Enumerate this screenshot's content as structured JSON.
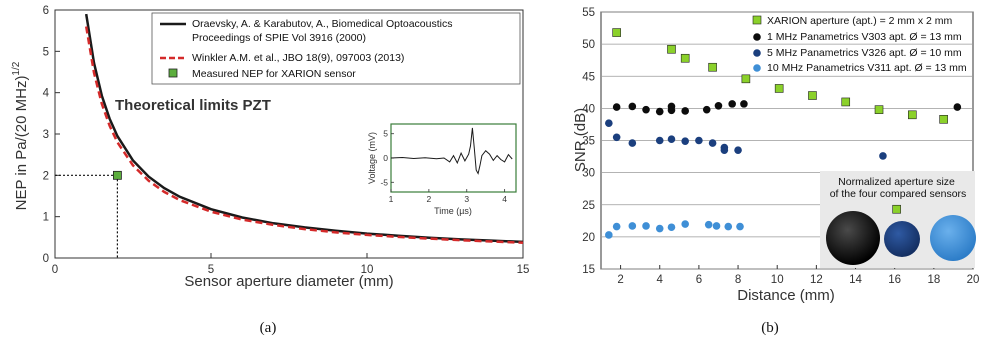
{
  "captions": [
    "(a)",
    "(b)"
  ],
  "chart_data": [
    {
      "type": "line",
      "xlabel": "Sensor aperture diameter (mm)",
      "ylabel": "NEP in Pa/(20 MHz)",
      "ylabel_sup": "1/2",
      "xlim": [
        0,
        15
      ],
      "ylim": [
        0,
        6
      ],
      "xticks": [
        "0",
        "5",
        "10",
        "15"
      ],
      "yticks": [
        "0",
        "1",
        "2",
        "3",
        "4",
        "5",
        "6"
      ],
      "annotation": "Theoretical limits PZT",
      "legend": {
        "position": "top-right",
        "entries": [
          "Oraevsky, A. & Karabutov, A., Biomedical Optoacoustics",
          "Proceedings of SPIE Vol 3916 (2000)",
          "Winkler A.M. et al., JBO 18(9), 097003 (2013)",
          "Measured NEP for XARION sensor"
        ]
      },
      "series": [
        {
          "style": "solid",
          "color": "#1a1a1a",
          "x": [
            1.0,
            1.25,
            1.5,
            1.75,
            2.0,
            2.5,
            3.0,
            3.5,
            4.0,
            5.0,
            6.0,
            7.0,
            8.0,
            9.0,
            10.0,
            11.0,
            12.0,
            13.0,
            14.0,
            15.0
          ],
          "y": [
            5.9,
            4.72,
            3.93,
            3.37,
            2.95,
            2.36,
            1.97,
            1.69,
            1.48,
            1.18,
            0.98,
            0.84,
            0.74,
            0.66,
            0.59,
            0.54,
            0.49,
            0.45,
            0.42,
            0.39
          ]
        },
        {
          "style": "dashed",
          "color": "#d42a2a",
          "x": [
            1.0,
            1.25,
            1.5,
            1.75,
            2.0,
            2.5,
            3.0,
            3.5,
            4.0,
            5.0,
            6.0,
            7.0,
            8.0,
            9.0,
            10.0,
            11.0,
            12.0,
            13.0,
            14.0,
            15.0
          ],
          "y": [
            5.6,
            4.48,
            3.73,
            3.2,
            2.8,
            2.24,
            1.87,
            1.6,
            1.4,
            1.12,
            0.93,
            0.8,
            0.7,
            0.62,
            0.56,
            0.51,
            0.47,
            0.43,
            0.4,
            0.37
          ]
        },
        {
          "style": "marker",
          "color": "#5cae3d",
          "x": [
            2.0
          ],
          "y": [
            2.0
          ]
        }
      ],
      "inset": {
        "xlabel": "Time (µs)",
        "ylabel": "Voltage (mV)",
        "xlim": [
          1,
          4.3
        ],
        "ylim": [
          -7,
          7
        ],
        "xticks": [
          "1",
          "2",
          "3",
          "4"
        ],
        "yticks": [
          "-5",
          "0",
          "5"
        ],
        "x": [
          1.0,
          1.3,
          1.6,
          1.9,
          2.2,
          2.4,
          2.55,
          2.65,
          2.75,
          2.85,
          2.95,
          3.05,
          3.1,
          3.15,
          3.2,
          3.25,
          3.3,
          3.35,
          3.4,
          3.5,
          3.6,
          3.7,
          3.8,
          3.9,
          4.0,
          4.1,
          4.2
        ],
        "y": [
          0,
          0.1,
          -0.1,
          0.05,
          -0.15,
          0,
          -0.8,
          0.5,
          -1.0,
          1.0,
          -0.6,
          0.8,
          2.5,
          6.2,
          2.0,
          -2.5,
          -3.2,
          -1.5,
          0.5,
          1.5,
          0.8,
          -0.5,
          0.5,
          -0.3,
          -0.8,
          0.7,
          -0.2
        ]
      }
    },
    {
      "type": "scatter",
      "xlabel": "Distance (mm)",
      "ylabel": "SNR (dB)",
      "xlim": [
        1,
        20
      ],
      "ylim": [
        15,
        55
      ],
      "xticks": [
        "2",
        "4",
        "6",
        "8",
        "10",
        "12",
        "14",
        "16",
        "18",
        "20"
      ],
      "yticks": [
        "15",
        "20",
        "25",
        "30",
        "35",
        "40",
        "45",
        "50",
        "55"
      ],
      "legend": {
        "position": "top-right",
        "entries": [
          "XARION aperture (apt.) = 2 mm x 2 mm",
          "1 MHz Panametrics V303 apt. Ø = 13 mm",
          "5 MHz Panametrics V326 apt. Ø = 10 mm",
          "10 MHz Panametrics V311 apt. Ø = 13 mm"
        ]
      },
      "series": [
        {
          "marker": "square",
          "color": "#8bd12a",
          "x": [
            1.8,
            4.6,
            5.3,
            6.7,
            8.4,
            10.1,
            11.8,
            13.5,
            15.2,
            16.9,
            18.5,
            16.1
          ],
          "y": [
            51.8,
            49.2,
            47.8,
            46.4,
            44.6,
            43.1,
            42.0,
            41.0,
            39.8,
            39.0,
            38.3,
            24.3
          ]
        },
        {
          "marker": "circle",
          "color": "#0c0c0c",
          "x": [
            1.8,
            2.6,
            3.3,
            4.0,
            4.6,
            4.6,
            5.3,
            6.4,
            7.0,
            7.7,
            8.3,
            19.2
          ],
          "y": [
            40.2,
            40.3,
            39.8,
            39.5,
            39.7,
            40.3,
            39.6,
            39.8,
            40.4,
            40.7,
            40.7,
            40.2
          ]
        },
        {
          "marker": "circle",
          "color": "#1b3f7e",
          "x": [
            1.4,
            1.8,
            2.6,
            4.0,
            4.6,
            5.3,
            6.0,
            6.7,
            7.3,
            7.3,
            8.0,
            15.4
          ],
          "y": [
            37.7,
            35.5,
            34.6,
            35.0,
            35.2,
            34.9,
            35.0,
            34.6,
            33.9,
            33.5,
            33.5,
            32.6
          ]
        },
        {
          "marker": "circle",
          "color": "#3f8fd6",
          "x": [
            1.4,
            1.8,
            2.6,
            3.3,
            4.0,
            4.6,
            5.3,
            6.5,
            6.9,
            7.5,
            8.1
          ],
          "y": [
            20.3,
            21.6,
            21.7,
            21.7,
            21.3,
            21.5,
            22.0,
            21.9,
            21.7,
            21.6,
            21.6
          ]
        }
      ],
      "inset_note": "Normalized aperture size of the four compared sensors",
      "sizes_colors": [
        "#0c0c0c",
        "#1b3f7e",
        "#3f8fd6"
      ]
    }
  ]
}
